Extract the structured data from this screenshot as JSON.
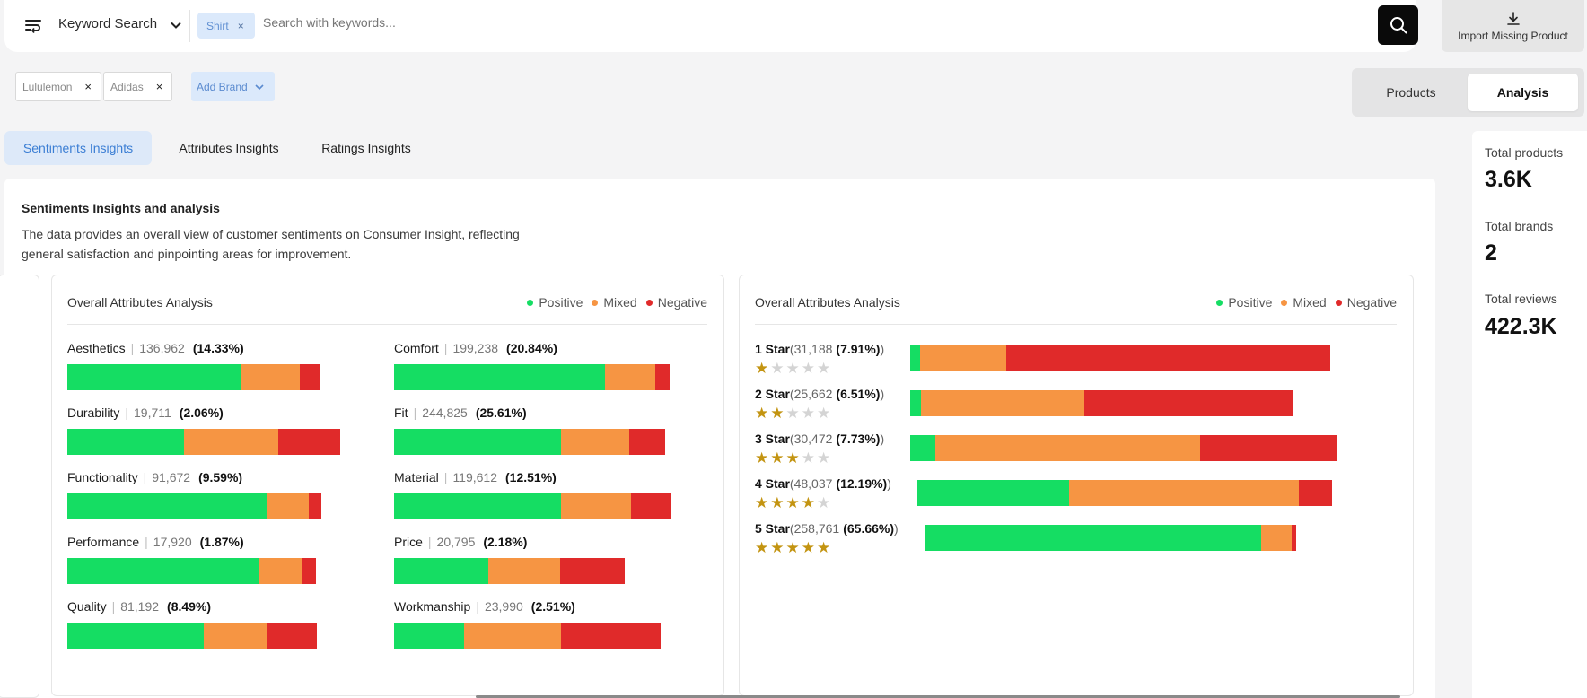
{
  "colors": {
    "positive": "#15dd63",
    "mixed": "#f69543",
    "negative": "#e02a2a",
    "accent": "#3b7ed4"
  },
  "search": {
    "mode_label": "Keyword Search",
    "chip": "Shirt",
    "placeholder": "Search with keywords...",
    "import_label": "Import Missing Product",
    "icons": {
      "menu": "menu-filter-icon",
      "mode": "chevron-down-icon",
      "submit": "search-icon",
      "import": "download-icon",
      "remove": "close-icon"
    }
  },
  "brands": {
    "chips": [
      "Lululemon",
      "Adidas"
    ],
    "add_label": "Add Brand"
  },
  "view_toggle": {
    "options": [
      "Products",
      "Analysis"
    ],
    "active": "Analysis"
  },
  "tabs": [
    "Sentiments Insights",
    "Attributes Insights",
    "Ratings Insights"
  ],
  "active_tab": "Sentiments Insights",
  "stats": [
    {
      "label": "Total products",
      "value": "3.6K"
    },
    {
      "label": "Total brands",
      "value": "2"
    },
    {
      "label": "Total reviews",
      "value": "422.3K"
    }
  ],
  "panel": {
    "title": "Sentiments Insights and analysis",
    "description": "The data provides an overall view of customer sentiments on Consumer Insight, reflecting general satisfaction and pinpointing areas for improvement."
  },
  "legend": [
    "Positive",
    "Mixed",
    "Negative"
  ],
  "attributes_card": {
    "title": "Overall Attributes Analysis",
    "items": [
      {
        "name": "Aesthetics",
        "count": "136,962",
        "pct": "(14.33%)",
        "positive": 194,
        "mixed": 65,
        "negative": 22
      },
      {
        "name": "Comfort",
        "count": "199,238",
        "pct": "(20.84%)",
        "positive": 235,
        "mixed": 56,
        "negative": 16
      },
      {
        "name": "Durability",
        "count": "19,711",
        "pct": "(2.06%)",
        "positive": 130,
        "mixed": 105,
        "negative": 69
      },
      {
        "name": "Fit",
        "count": "244,825",
        "pct": "(25.61%)",
        "positive": 186,
        "mixed": 76,
        "negative": 40
      },
      {
        "name": "Functionality",
        "count": "91,672",
        "pct": "(9.59%)",
        "positive": 223,
        "mixed": 46,
        "negative": 14
      },
      {
        "name": "Material",
        "count": "119,612",
        "pct": "(12.51%)",
        "positive": 186,
        "mixed": 78,
        "negative": 44
      },
      {
        "name": "Performance",
        "count": "17,920",
        "pct": "(1.87%)",
        "positive": 214,
        "mixed": 48,
        "negative": 15
      },
      {
        "name": "Price",
        "count": "20,795",
        "pct": "(2.18%)",
        "positive": 105,
        "mixed": 80,
        "negative": 72
      },
      {
        "name": "Quality",
        "count": "81,192",
        "pct": "(8.49%)",
        "positive": 152,
        "mixed": 70,
        "negative": 56
      },
      {
        "name": "Workmanship",
        "count": "23,990",
        "pct": "(2.51%)",
        "positive": 78,
        "mixed": 108,
        "negative": 111
      }
    ]
  },
  "ratings_card": {
    "title": "Overall Attributes Analysis",
    "items": [
      {
        "name": "1 Star",
        "count": "31,188",
        "pct": "(7.91%)",
        "stars": 1,
        "positive": 11,
        "mixed": 96,
        "negative": 361
      },
      {
        "name": "2 Star",
        "count": "25,662",
        "pct": "(6.51%)",
        "stars": 2,
        "positive": 12,
        "mixed": 182,
        "negative": 233
      },
      {
        "name": "3 Star",
        "count": "30,472",
        "pct": "(7.73%)",
        "stars": 3,
        "positive": 28,
        "mixed": 295,
        "negative": 153
      },
      {
        "name": "4 Star",
        "count": "48,037",
        "pct": "(12.19%)",
        "stars": 4,
        "positive": 169,
        "mixed": 256,
        "negative": 37
      },
      {
        "name": "5 Star",
        "count": "258,761",
        "pct": "(65.66%)",
        "stars": 5,
        "positive": 375,
        "mixed": 34,
        "negative": 5
      }
    ]
  }
}
